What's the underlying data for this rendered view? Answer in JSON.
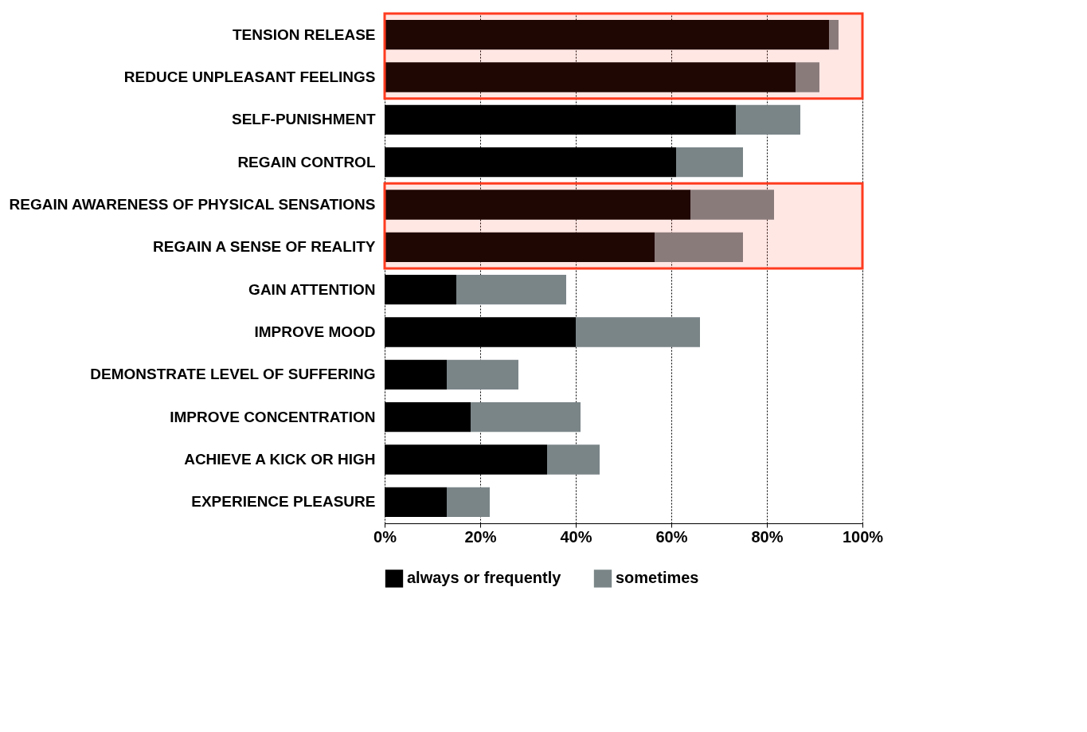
{
  "chart_data": {
    "type": "bar",
    "orientation": "horizontal",
    "stacked": true,
    "categories": [
      "TENSION RELEASE",
      "REDUCE UNPLEASANT FEELINGS",
      "SELF-PUNISHMENT",
      "REGAIN CONTROL",
      "REGAIN AWARENESS OF PHYSICAL SENSATIONS",
      "REGAIN A SENSE OF REALITY",
      "GAIN ATTENTION",
      "IMPROVE MOOD",
      "DEMONSTRATE LEVEL OF SUFFERING",
      "IMPROVE CONCENTRATION",
      "ACHIEVE A KICK OR HIGH",
      "EXPERIENCE PLEASURE"
    ],
    "series": [
      {
        "name": "always or frequently",
        "color": "#000000",
        "values": [
          93,
          86,
          73.5,
          61,
          64,
          56.5,
          15,
          40,
          13,
          18,
          34,
          13
        ]
      },
      {
        "name": "sometimes",
        "color": "#7a8588",
        "values": [
          2,
          5,
          13.5,
          14,
          17.5,
          18.5,
          23,
          26,
          15,
          23,
          11,
          9
        ]
      }
    ],
    "xlim": [
      0,
      100
    ],
    "xticks": [
      {
        "value": 0,
        "label": "0%"
      },
      {
        "value": 20,
        "label": "20%"
      },
      {
        "value": 40,
        "label": "40%"
      },
      {
        "value": 60,
        "label": "60%"
      },
      {
        "value": 80,
        "label": "80%"
      },
      {
        "value": 100,
        "label": "100%"
      }
    ],
    "grid": "x",
    "legend": "bottom",
    "bands": [
      {
        "axis": "y",
        "from": "TENSION RELEASE",
        "to": "REDUCE UNPLEASANT FEELINGS",
        "label": null,
        "color": "#ff3b1f"
      },
      {
        "axis": "y",
        "from": "REGAIN AWARENESS OF PHYSICAL SENSATIONS",
        "to": "REGAIN A SENSE OF REALITY",
        "label": null,
        "color": "#ff3b1f"
      }
    ]
  }
}
